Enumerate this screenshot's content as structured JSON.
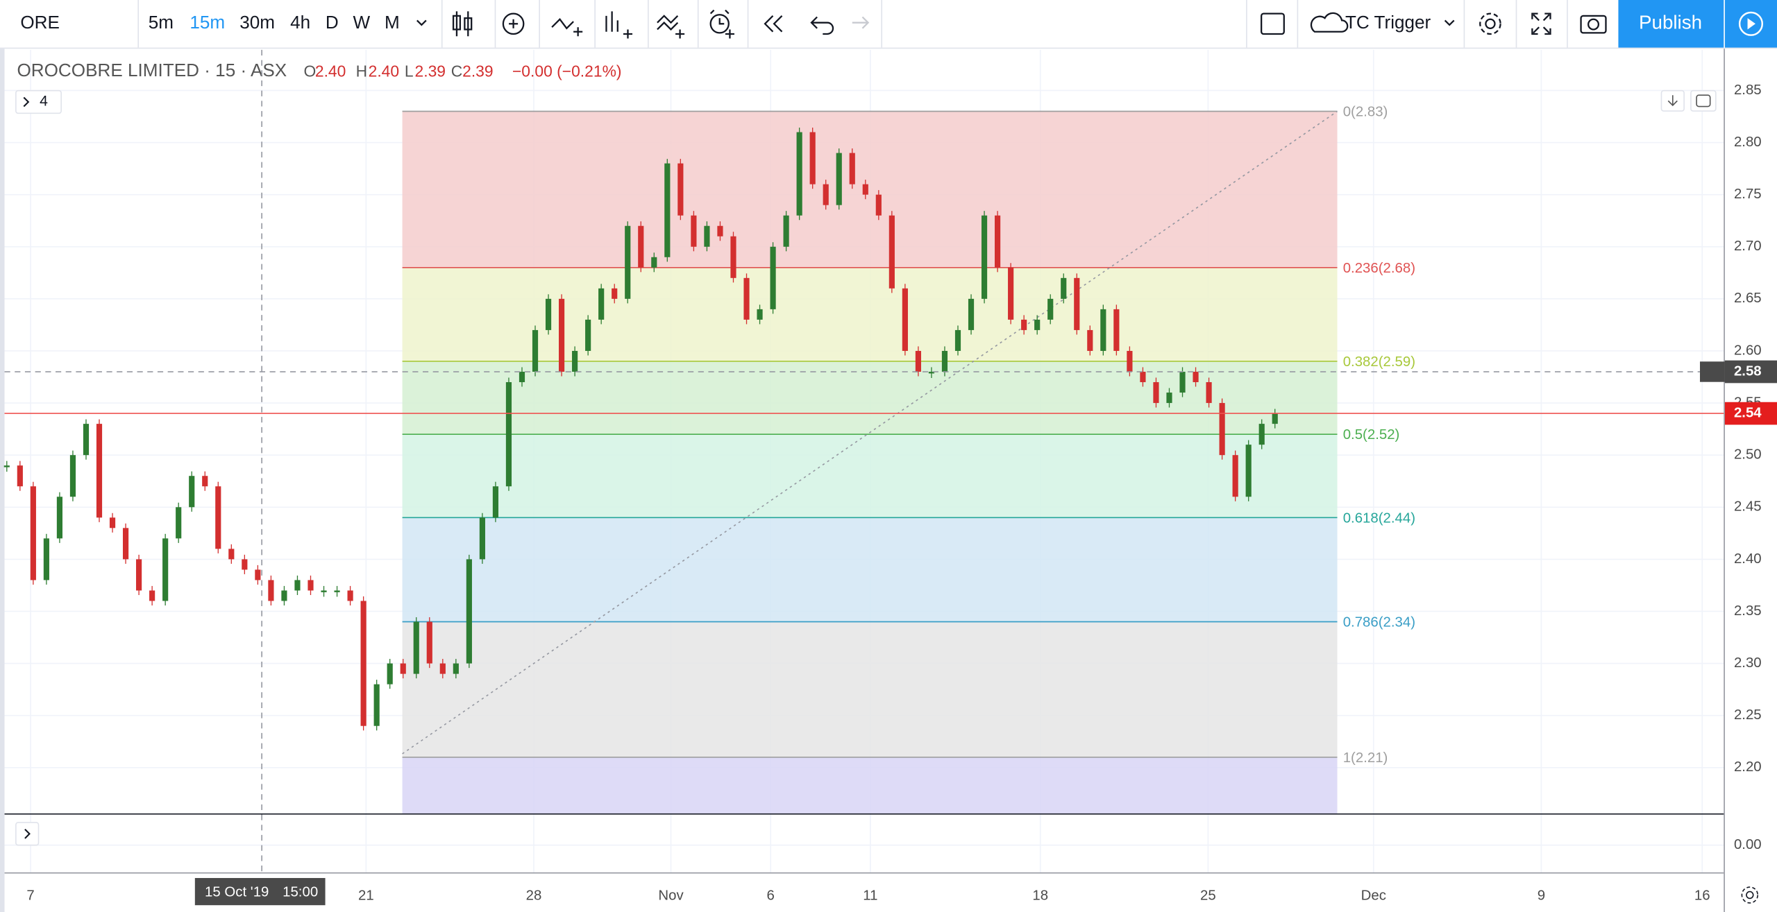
{
  "toolbar": {
    "symbol": "ORE",
    "intervals": [
      "5m",
      "15m",
      "30m",
      "4h",
      "D",
      "W",
      "M"
    ],
    "trigger": "TC Trigger",
    "publish": "Publish"
  },
  "legend": {
    "title": "OROCOBRE LIMITED · 15 · ASX",
    "open_label": "O",
    "open": "2.40",
    "high_label": "H",
    "high": "2.40",
    "low_label": "L",
    "low": "2.39",
    "close_label": "C",
    "close": "2.39",
    "change": "−0.00 (−0.21%)",
    "indicators": "4"
  },
  "chart_data": {
    "type": "candlestick",
    "values": [
      2.49,
      2.47,
      2.38,
      2.42,
      2.46,
      2.5,
      2.53,
      2.44,
      2.43,
      2.4,
      2.37,
      2.36,
      2.42,
      2.45,
      2.48,
      2.47,
      2.41,
      2.4,
      2.39,
      2.38,
      2.36,
      2.37,
      2.38,
      2.37,
      2.37,
      2.37,
      2.36,
      2.24,
      2.28,
      2.3,
      2.29,
      2.34,
      2.3,
      2.29,
      2.3,
      2.4,
      2.44,
      2.47,
      2.57,
      2.58,
      2.62,
      2.65,
      2.58,
      2.6,
      2.63,
      2.66,
      2.65,
      2.72,
      2.68,
      2.69,
      2.78,
      2.73,
      2.7,
      2.72,
      2.71,
      2.67,
      2.63,
      2.64,
      2.7,
      2.73,
      2.81,
      2.76,
      2.74,
      2.79,
      2.76,
      2.75,
      2.73,
      2.66,
      2.6,
      2.58,
      2.58,
      2.6,
      2.62,
      2.65,
      2.73,
      2.68,
      2.63,
      2.62,
      2.63,
      2.65,
      2.67,
      2.62,
      2.6,
      2.64,
      2.6,
      2.58,
      2.57,
      2.55,
      2.56,
      2.58,
      2.57,
      2.55,
      2.5,
      2.46,
      2.51,
      2.53,
      2.54
    ],
    "up_color": "#2e7d32",
    "down_color": "#d32f2f",
    "ylim": [
      2.156,
      2.889
    ],
    "yticks": [
      2.85,
      {
        "value": 2.8,
        "label": "2.80"
      },
      2.75,
      {
        "value": 2.7,
        "label": "2.70"
      },
      2.65,
      {
        "value": 2.6,
        "label": "2.60"
      },
      2.55,
      {
        "value": 2.5,
        "label": "2.50"
      },
      2.45,
      {
        "value": 2.4,
        "label": "2.40"
      },
      2.35,
      {
        "value": 2.3,
        "label": "2.30"
      },
      2.25,
      {
        "value": 2.2,
        "label": "2.20"
      }
    ],
    "subpane_ticks": [
      {
        "value": 0,
        "label": "0.00"
      }
    ],
    "time_labels": [
      "7",
      "21",
      "28",
      "Nov",
      "6",
      "11",
      "18",
      "25",
      "Dec",
      "9",
      "16"
    ],
    "crosshair_date": "15 Oct '19",
    "crosshair_time": "15:00",
    "crosshair_price": {
      "value": 2.58,
      "label": "2.58"
    },
    "last_price": {
      "value": 2.54,
      "label": "2.54"
    },
    "fib_levels": [
      {
        "value": 2.83,
        "label": "0(2.83)",
        "color": "#9e9e9e",
        "fill": "#f4cccc"
      },
      {
        "value": 2.68,
        "label": "0.236(2.68)",
        "color": "#e05252",
        "fill": "#eef3cc"
      },
      {
        "value": 2.59,
        "label": "0.382(2.59)",
        "color": "#a8c83a",
        "fill": "#d5f0d2"
      },
      {
        "value": 2.52,
        "label": "0.5(2.52)",
        "color": "#4caf50",
        "fill": "#d3f3e4"
      },
      {
        "value": 2.44,
        "label": "0.618(2.44)",
        "color": "#26a69a",
        "fill": "#d2e6f4"
      },
      {
        "value": 2.34,
        "label": "0.786(2.34)",
        "color": "#3a9ec6",
        "fill": "#e5e5e5"
      },
      {
        "value": 2.21,
        "label": "1(2.21)",
        "color": "#9e9e9e",
        "fill": "#d8d5f6"
      }
    ]
  }
}
